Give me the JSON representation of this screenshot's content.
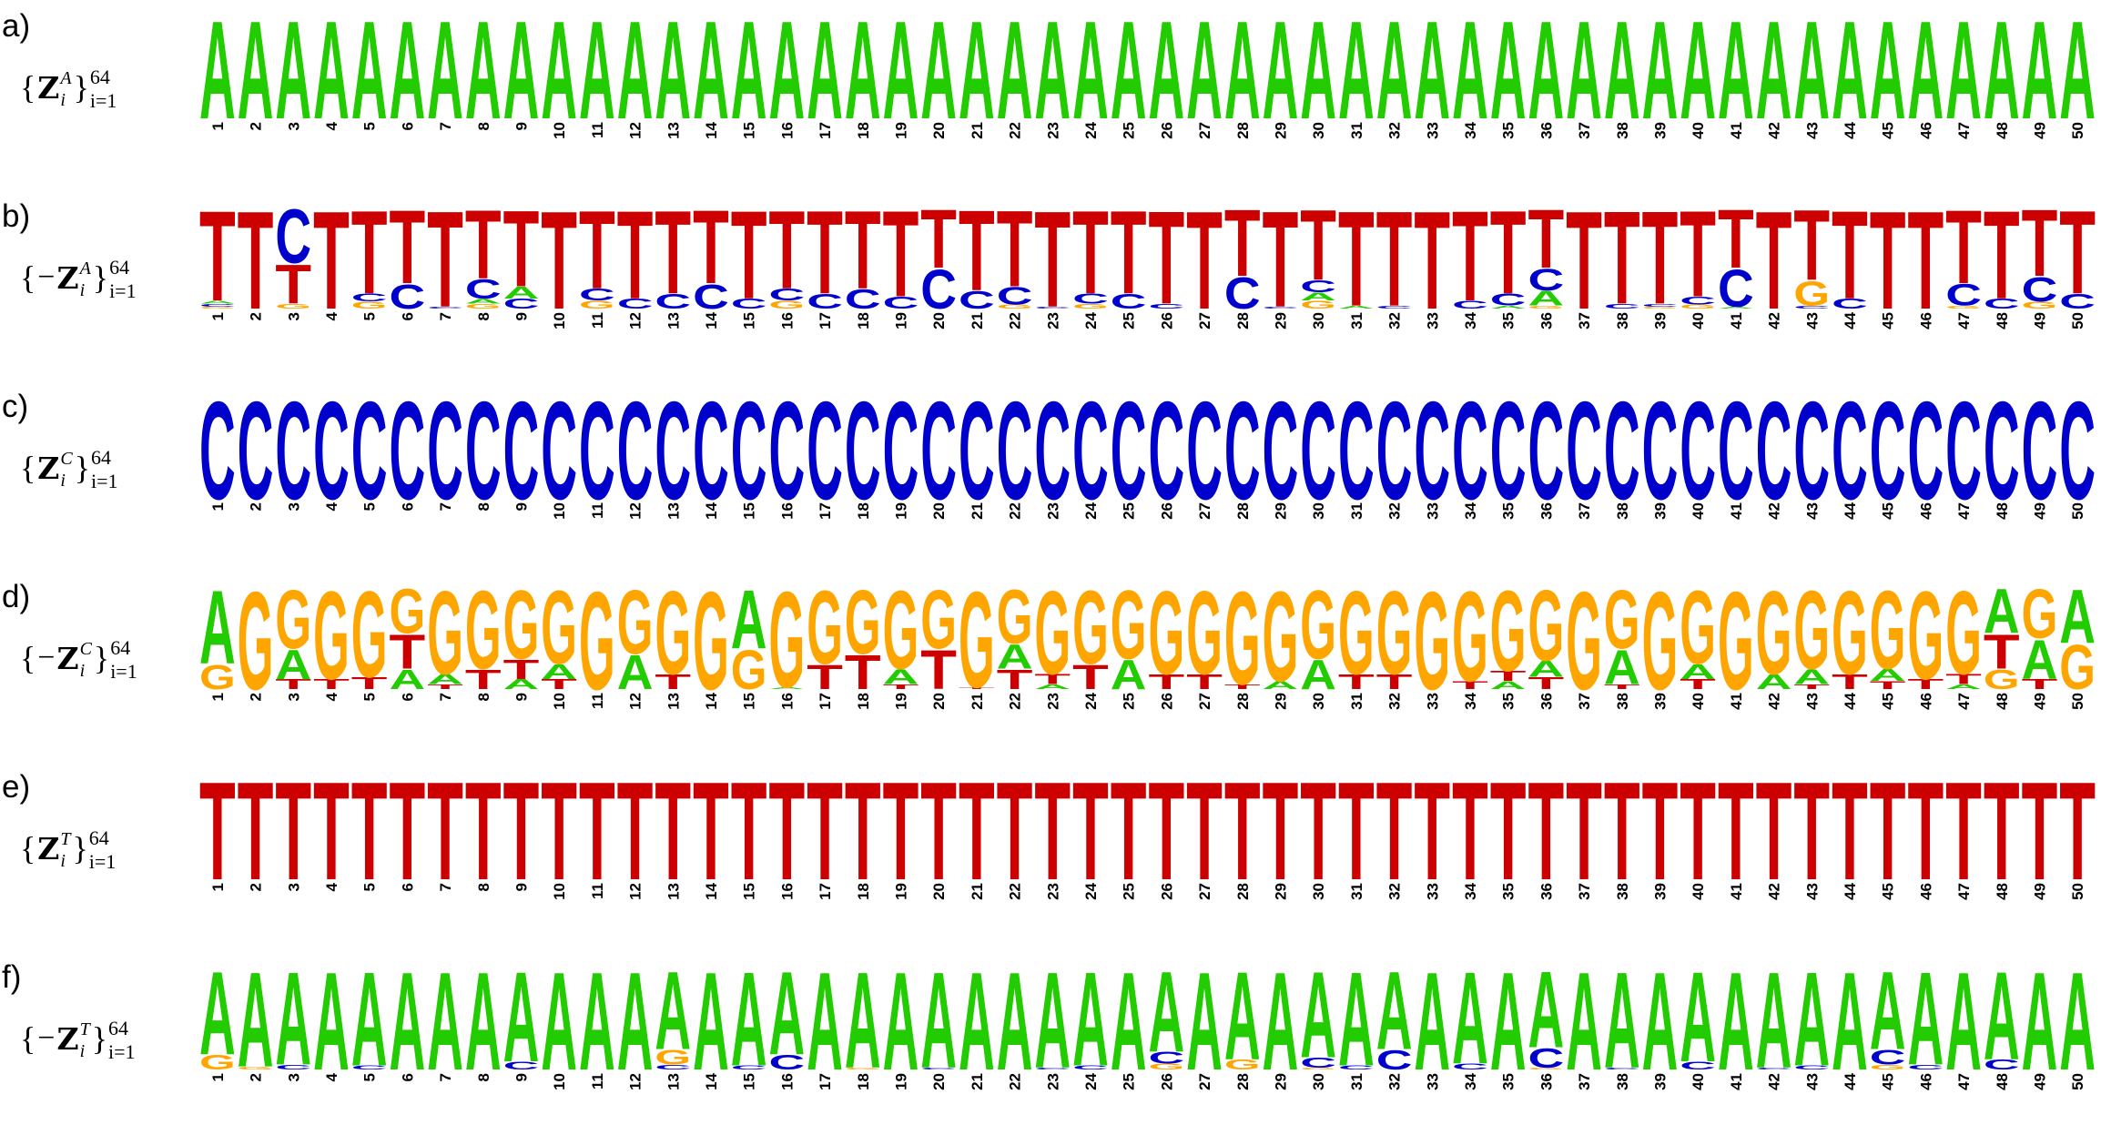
{
  "chart_data": [
    {
      "type": "logo",
      "label": "a)",
      "set": {
        "open": "{",
        "symbol": "Z",
        "letter": "A",
        "index": "i",
        "close": "}",
        "upper": "64",
        "lower": "i=1"
      },
      "categories": [
        1,
        2,
        3,
        4,
        5,
        6,
        7,
        8,
        9,
        10,
        11,
        12,
        13,
        14,
        15,
        16,
        17,
        18,
        19,
        20,
        21,
        22,
        23,
        24,
        25,
        26,
        27,
        28,
        29,
        30,
        31,
        32,
        33,
        34,
        35,
        36,
        37,
        38,
        39,
        40,
        41,
        42,
        43,
        44,
        45,
        46,
        47,
        48,
        49,
        50
      ],
      "series": [
        {
          "name": "A",
          "color": "#22cc00",
          "values": [
            1,
            1,
            1,
            1,
            1,
            1,
            1,
            1,
            1,
            1,
            1,
            1,
            1,
            1,
            1,
            1,
            1,
            1,
            1,
            1,
            1,
            1,
            1,
            1,
            1,
            1,
            1,
            1,
            1,
            1,
            1,
            1,
            1,
            1,
            1,
            1,
            1,
            1,
            1,
            1,
            1,
            1,
            1,
            1,
            1,
            1,
            1,
            1,
            1,
            1
          ]
        }
      ]
    },
    {
      "type": "logo",
      "label": "b)",
      "set": {
        "open": "{",
        "sign": "−",
        "symbol": "Z",
        "letter": "A",
        "index": "i",
        "close": "}",
        "upper": "64",
        "lower": "i=1"
      },
      "categories": [
        1,
        2,
        3,
        4,
        5,
        6,
        7,
        8,
        9,
        10,
        11,
        12,
        13,
        14,
        15,
        16,
        17,
        18,
        19,
        20,
        21,
        22,
        23,
        24,
        25,
        26,
        27,
        28,
        29,
        30,
        31,
        32,
        33,
        34,
        35,
        36,
        37,
        38,
        39,
        40,
        41,
        42,
        43,
        44,
        45,
        46,
        47,
        48,
        49,
        50
      ],
      "series": [
        {
          "name": "T",
          "color": "#cc0000",
          "values": [
            0.92,
            1,
            0.4,
            1,
            0.85,
            0.75,
            0.98,
            0.7,
            0.78,
            1,
            0.8,
            0.9,
            0.85,
            0.75,
            0.9,
            0.8,
            0.85,
            0.8,
            0.88,
            0.6,
            0.82,
            0.78,
            0.98,
            0.85,
            0.85,
            0.95,
            1,
            0.68,
            0.98,
            0.72,
            0.97,
            0.97,
            1,
            0.92,
            0.85,
            0.6,
            1,
            0.95,
            0.95,
            0.88,
            0.6,
            1,
            0.72,
            0.9,
            1,
            1,
            0.75,
            0.9,
            0.68,
            0.85
          ]
        },
        {
          "name": "C",
          "color": "#0000cc",
          "values": [
            0.03,
            0,
            0.55,
            0,
            0.08,
            0.25,
            0.02,
            0.2,
            0.1,
            0,
            0.12,
            0.1,
            0.15,
            0.25,
            0.1,
            0.12,
            0.15,
            0.2,
            0.12,
            0.4,
            0.18,
            0.18,
            0.02,
            0.1,
            0.15,
            0.05,
            0,
            0.32,
            0.02,
            0.12,
            0,
            0.03,
            0,
            0.08,
            0.12,
            0.22,
            0,
            0.05,
            0.03,
            0.08,
            0.38,
            0,
            0.03,
            0.1,
            0,
            0,
            0.22,
            0.1,
            0.25,
            0.15
          ]
        },
        {
          "name": "G",
          "color": "#ffa500",
          "values": [
            0.02,
            0,
            0.05,
            0,
            0.07,
            0,
            0,
            0.05,
            0,
            0,
            0.08,
            0,
            0,
            0,
            0,
            0.08,
            0,
            0,
            0,
            0,
            0,
            0.04,
            0,
            0.05,
            0,
            0,
            0,
            0,
            0,
            0.08,
            0,
            0,
            0,
            0,
            0,
            0.03,
            0,
            0,
            0.02,
            0.04,
            0,
            0,
            0.25,
            0,
            0,
            0,
            0.03,
            0,
            0.07,
            0
          ]
        },
        {
          "name": "A",
          "color": "#22cc00",
          "values": [
            0.03,
            0,
            0,
            0,
            0,
            0,
            0,
            0.05,
            0.12,
            0,
            0,
            0,
            0,
            0,
            0,
            0,
            0,
            0,
            0,
            0,
            0,
            0,
            0,
            0,
            0,
            0,
            0,
            0,
            0,
            0.08,
            0.03,
            0,
            0,
            0,
            0.03,
            0.15,
            0,
            0,
            0,
            0,
            0.02,
            0,
            0,
            0,
            0,
            0,
            0,
            0,
            0,
            0
          ]
        }
      ]
    },
    {
      "type": "logo",
      "label": "c)",
      "set": {
        "open": "{",
        "symbol": "Z",
        "letter": "C",
        "index": "i",
        "close": "}",
        "upper": "64",
        "lower": "i=1"
      },
      "categories": [
        1,
        2,
        3,
        4,
        5,
        6,
        7,
        8,
        9,
        10,
        11,
        12,
        13,
        14,
        15,
        16,
        17,
        18,
        19,
        20,
        21,
        22,
        23,
        24,
        25,
        26,
        27,
        28,
        29,
        30,
        31,
        32,
        33,
        34,
        35,
        36,
        37,
        38,
        39,
        40,
        41,
        42,
        43,
        44,
        45,
        46,
        47,
        48,
        49,
        50
      ],
      "series": [
        {
          "name": "C",
          "color": "#0000cc",
          "values": [
            1,
            1,
            1,
            1,
            1,
            1,
            1,
            1,
            1,
            1,
            1,
            1,
            1,
            1,
            1,
            1,
            1,
            1,
            1,
            1,
            1,
            1,
            1,
            1,
            1,
            1,
            1,
            1,
            1,
            1,
            1,
            1,
            1,
            1,
            1,
            1,
            1,
            1,
            1,
            1,
            1,
            1,
            1,
            1,
            1,
            1,
            1,
            1,
            1,
            1
          ]
        }
      ]
    },
    {
      "type": "logo",
      "label": "d)",
      "set": {
        "open": "{",
        "sign": "−",
        "symbol": "Z",
        "letter": "C",
        "index": "i",
        "close": "}",
        "upper": "64",
        "lower": "i=1"
      },
      "categories": [
        1,
        2,
        3,
        4,
        5,
        6,
        7,
        8,
        9,
        10,
        11,
        12,
        13,
        14,
        15,
        16,
        17,
        18,
        19,
        20,
        21,
        22,
        23,
        24,
        25,
        26,
        27,
        28,
        29,
        30,
        31,
        32,
        33,
        34,
        35,
        36,
        37,
        38,
        39,
        40,
        41,
        42,
        43,
        44,
        45,
        46,
        47,
        48,
        49,
        50
      ],
      "series": [
        {
          "name": "G",
          "color": "#ffa500",
          "values": [
            0.25,
            1,
            0.6,
            0.9,
            0.88,
            0.45,
            0.85,
            0.8,
            0.7,
            0.75,
            1,
            0.65,
            0.85,
            1,
            0.4,
            0.98,
            0.75,
            0.65,
            0.8,
            0.6,
            0.98,
            0.55,
            0.85,
            0.75,
            0.7,
            0.85,
            0.85,
            0.95,
            0.92,
            0.7,
            0.85,
            0.85,
            1,
            0.92,
            0.82,
            0.72,
            1,
            0.6,
            1,
            0.75,
            1,
            0.85,
            0.8,
            0.85,
            0.8,
            0.9,
            0.85,
            0.2,
            0.5,
            0.45
          ]
        },
        {
          "name": "A",
          "color": "#22cc00",
          "values": [
            0.75,
            0,
            0.3,
            0,
            0,
            0.2,
            0.1,
            0,
            0.1,
            0.15,
            0,
            0.35,
            0,
            0,
            0.6,
            0.02,
            0,
            0,
            0.15,
            0,
            0,
            0.25,
            0.05,
            0,
            0.3,
            0,
            0,
            0,
            0.08,
            0.3,
            0,
            0,
            0,
            0,
            0.08,
            0.16,
            0,
            0.35,
            0,
            0.15,
            0,
            0.15,
            0.15,
            0,
            0.12,
            0,
            0.05,
            0.45,
            0.4,
            0.55
          ]
        },
        {
          "name": "T",
          "color": "#cc0000",
          "values": [
            0,
            0,
            0.1,
            0.1,
            0.12,
            0.35,
            0.05,
            0.2,
            0.2,
            0.1,
            0,
            0,
            0.15,
            0,
            0,
            0,
            0.25,
            0.35,
            0.05,
            0.4,
            0.02,
            0.2,
            0.1,
            0.25,
            0,
            0.15,
            0.15,
            0.05,
            0,
            0,
            0.15,
            0.15,
            0,
            0.08,
            0.1,
            0.12,
            0,
            0.05,
            0,
            0.1,
            0,
            0,
            0.05,
            0.15,
            0.08,
            0.1,
            0.1,
            0.35,
            0.1,
            0
          ]
        }
      ]
    },
    {
      "type": "logo",
      "label": "e)",
      "set": {
        "open": "{",
        "symbol": "Z",
        "letter": "T",
        "index": "i",
        "close": "}",
        "upper": "64",
        "lower": "i=1"
      },
      "categories": [
        1,
        2,
        3,
        4,
        5,
        6,
        7,
        8,
        9,
        10,
        11,
        12,
        13,
        14,
        15,
        16,
        17,
        18,
        19,
        20,
        21,
        22,
        23,
        24,
        25,
        26,
        27,
        28,
        29,
        30,
        31,
        32,
        33,
        34,
        35,
        36,
        37,
        38,
        39,
        40,
        41,
        42,
        43,
        44,
        45,
        46,
        47,
        48,
        49,
        50
      ],
      "series": [
        {
          "name": "T",
          "color": "#cc0000",
          "values": [
            1,
            1,
            1,
            1,
            1,
            1,
            1,
            1,
            1,
            1,
            1,
            1,
            1,
            1,
            1,
            1,
            1,
            1,
            1,
            1,
            1,
            1,
            1,
            1,
            1,
            1,
            1,
            1,
            1,
            1,
            1,
            1,
            1,
            1,
            1,
            1,
            1,
            1,
            1,
            1,
            1,
            1,
            1,
            1,
            1,
            1,
            1,
            1,
            1,
            1
          ]
        }
      ]
    },
    {
      "type": "logo",
      "label": "f)",
      "set": {
        "open": "{",
        "sign": "−",
        "symbol": "Z",
        "letter": "T",
        "index": "i",
        "close": "}",
        "upper": "64",
        "lower": "i=1"
      },
      "categories": [
        1,
        2,
        3,
        4,
        5,
        6,
        7,
        8,
        9,
        10,
        11,
        12,
        13,
        14,
        15,
        16,
        17,
        18,
        19,
        20,
        21,
        22,
        23,
        24,
        25,
        26,
        27,
        28,
        29,
        30,
        31,
        32,
        33,
        34,
        35,
        36,
        37,
        38,
        39,
        40,
        41,
        42,
        43,
        44,
        45,
        46,
        47,
        48,
        49,
        50
      ],
      "series": [
        {
          "name": "A",
          "color": "#22cc00",
          "values": [
            0.85,
            0.97,
            0.95,
            1,
            0.96,
            1,
            1,
            1,
            0.92,
            1,
            1,
            1,
            0.8,
            1,
            0.96,
            0.85,
            1,
            0.98,
            1,
            0.98,
            1,
            1,
            0.98,
            0.96,
            1,
            0.82,
            1,
            0.9,
            1,
            0.88,
            0.96,
            0.8,
            1,
            0.94,
            1,
            0.78,
            1,
            0.98,
            1,
            0.92,
            1,
            0.98,
            0.96,
            1,
            0.8,
            0.95,
            1,
            0.9,
            1,
            1
          ]
        },
        {
          "name": "G",
          "color": "#ffa500",
          "values": [
            0.15,
            0.03,
            0,
            0,
            0,
            0,
            0,
            0,
            0,
            0,
            0,
            0,
            0.15,
            0,
            0,
            0,
            0,
            0.02,
            0,
            0,
            0,
            0,
            0,
            0,
            0,
            0.06,
            0,
            0.1,
            0,
            0.02,
            0,
            0,
            0,
            0,
            0,
            0.02,
            0,
            0,
            0,
            0,
            0,
            0,
            0,
            0,
            0.05,
            0,
            0,
            0,
            0,
            0
          ]
        },
        {
          "name": "C",
          "color": "#0000cc",
          "values": [
            0,
            0,
            0.05,
            0,
            0.04,
            0,
            0,
            0,
            0.08,
            0,
            0,
            0,
            0.05,
            0,
            0.04,
            0.15,
            0,
            0,
            0,
            0.02,
            0,
            0,
            0.02,
            0.04,
            0,
            0.12,
            0,
            0,
            0,
            0.1,
            0.04,
            0.2,
            0,
            0.06,
            0,
            0.2,
            0,
            0.02,
            0,
            0.08,
            0,
            0.02,
            0.04,
            0,
            0.15,
            0.05,
            0,
            0.1,
            0,
            0
          ]
        }
      ]
    }
  ]
}
